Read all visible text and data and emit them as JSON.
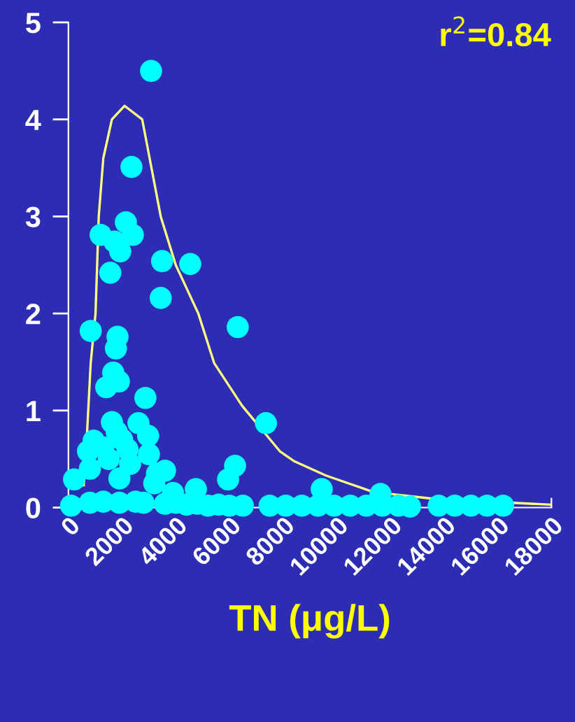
{
  "chart_data": {
    "type": "scatter",
    "xlabel": "TN (μg/L)",
    "annotations": [
      "r$^{2}$=0.84"
    ],
    "xlim": [
      0,
      18000
    ],
    "xticks": [
      0,
      2000,
      4000,
      6000,
      8000,
      10000,
      12000,
      14000,
      16000,
      18000
    ],
    "ylim": [
      0,
      5
    ],
    "yticks": [
      0,
      1,
      2,
      3,
      4,
      5
    ],
    "grid": false,
    "legend": false,
    "series": [
      {
        "marker": "circle",
        "color": "#00ffff",
        "x": [
          3080,
          2350,
          2140,
          2400,
          1200,
          1930,
          1720,
          1560,
          3490,
          4540,
          3440,
          6310,
          830,
          1830,
          1770,
          1670,
          1410,
          1880,
          2870,
          7360,
          1620,
          2610,
          2970,
          940,
          730,
          6210,
          5950,
          3600,
          210,
          4750,
          9440,
          11630,
          12730,
          1300,
          1500,
          1800,
          2000,
          2200,
          3000,
          3300,
          800,
          1900,
          2300,
          3200,
          3900,
          100,
          800,
          1300,
          1900,
          2500,
          2800,
          3600,
          4000,
          4400,
          4800,
          5200,
          5600,
          6000,
          6500,
          7500,
          8100,
          8700,
          9300,
          9900,
          10500,
          11100,
          11700,
          12300,
          13800,
          14400,
          15000,
          15600,
          16200
        ],
        "values": [
          4.5,
          3.51,
          2.94,
          2.81,
          2.81,
          2.64,
          2.74,
          2.42,
          2.54,
          2.51,
          2.16,
          1.86,
          1.82,
          1.76,
          1.64,
          1.39,
          1.24,
          1.3,
          1.13,
          0.87,
          0.88,
          0.87,
          0.74,
          0.69,
          0.58,
          0.43,
          0.29,
          0.38,
          0.29,
          0.19,
          0.19,
          0.14,
          0.01,
          0.62,
          0.5,
          0.78,
          0.7,
          0.6,
          0.55,
          0.35,
          0.4,
          0.3,
          0.45,
          0.25,
          0.15,
          0.02,
          0.05,
          0.06,
          0.05,
          0.06,
          0.05,
          0.04,
          0.05,
          0.03,
          0.04,
          0.02,
          0.03,
          0.02,
          0.02,
          0.02,
          0.02,
          0.02,
          0.02,
          0.02,
          0.02,
          0.02,
          0.02,
          0.02,
          0.02,
          0.02,
          0.02,
          0.02,
          0.02
        ]
      },
      {
        "type": "line",
        "color": "#ffff80",
        "x": [
          570,
          700,
          830,
          1010,
          1130,
          1300,
          1620,
          2090,
          2750,
          3440,
          4000,
          4840,
          5430,
          6470,
          7880,
          8400,
          9600,
          11370,
          13620,
          17950
        ],
        "values": [
          0.23,
          0.8,
          1.49,
          2.0,
          3.0,
          3.6,
          4.0,
          4.14,
          4.0,
          3.0,
          2.5,
          2.0,
          1.49,
          1.05,
          0.58,
          0.48,
          0.33,
          0.16,
          0.09,
          0.03
        ]
      }
    ]
  }
}
